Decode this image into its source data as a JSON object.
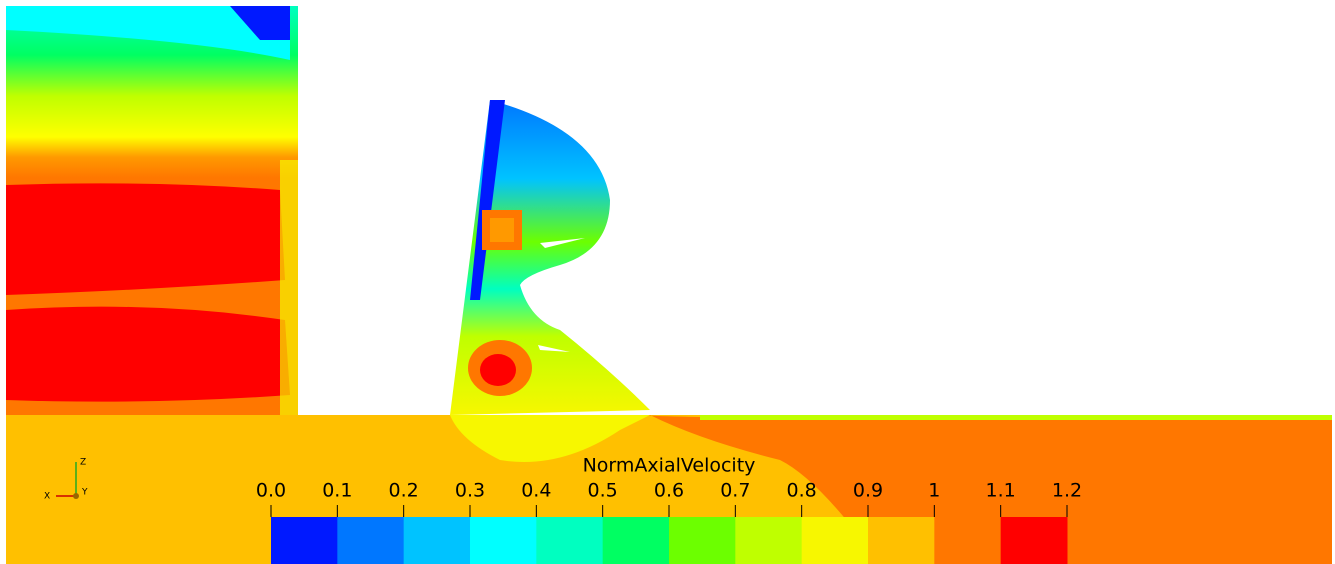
{
  "colorbar": {
    "title": "NormAxialVelocity",
    "ticks": [
      {
        "value": 0,
        "label": "0.0"
      },
      0.1,
      0.2,
      0.3,
      0.4,
      0.5,
      0.6,
      0.7,
      0.8,
      0.9,
      1,
      1.1,
      1.2
    ],
    "colors": [
      "#0019ff",
      "#0077ff",
      "#00c3ff",
      "#00ffff",
      "#00ffc0",
      "#00ff62",
      "#6cff00",
      "#bfff00",
      "#f7f700",
      "#ffc000",
      "#ff7700",
      "#ff0000"
    ]
  },
  "axes": {
    "labels": [
      "Z",
      "X",
      "Y"
    ]
  }
}
